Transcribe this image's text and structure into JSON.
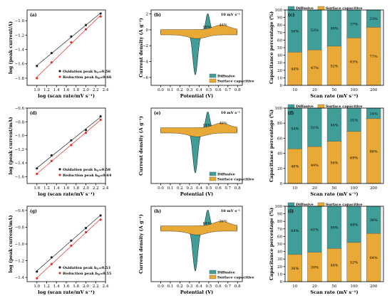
{
  "colors": {
    "diffusive": "#3f9e97",
    "surface": "#e9a937",
    "ox": "#222222",
    "red": "#e0302b"
  },
  "chart_data": [
    {
      "type": "scatter",
      "panel_label": "(a)",
      "xlabel": "log (scan rate/mV s⁻¹)",
      "ylabel": "log (peak current/A)",
      "xlim": [
        0.8,
        2.4
      ],
      "ylim": [
        -1.9,
        -0.85
      ],
      "xticks": [
        1.0,
        1.2,
        1.4,
        1.6,
        1.8,
        2.0,
        2.2,
        2.4
      ],
      "yticks": [
        -1.8,
        -1.6,
        -1.4,
        -1.2,
        -1.0
      ],
      "x": [
        1.0,
        1.3,
        1.7,
        2.0,
        2.3
      ],
      "series": [
        {
          "name": "Oxidation peak b",
          "b_label": "=0.56",
          "values": [
            -1.63,
            -1.45,
            -1.22,
            -1.06,
            -0.9
          ]
        },
        {
          "name": "Reduction peak b",
          "b_label": "=0.66",
          "values": [
            -1.8,
            -1.58,
            -1.3,
            -1.12,
            -0.94
          ]
        }
      ]
    },
    {
      "type": "line",
      "panel_label": "(b)",
      "scan_label": "10 mV s⁻¹",
      "xlabel": "Potential (V)",
      "ylabel": "Current density (A g⁻¹)",
      "xlim": [
        -0.1,
        0.85
      ],
      "ylim": [
        -7,
        2.5
      ],
      "xticks": [
        0.0,
        0.1,
        0.2,
        0.3,
        0.4,
        0.5,
        0.6,
        0.7,
        0.8
      ],
      "yticks": [
        -6,
        -4,
        -2,
        0,
        2
      ],
      "legend": [
        "Diffusive",
        "Surface capacitive"
      ],
      "annotations": [
        "56%",
        "44%"
      ]
    },
    {
      "type": "bar",
      "panel_label": "(c)",
      "xlabel": "Scan rate (mV s⁻¹)",
      "ylabel": "Capacitance percentage (%)",
      "categories": [
        "10",
        "20",
        "50",
        "100",
        "200"
      ],
      "ylim": [
        0,
        100
      ],
      "yticks": [
        0,
        10,
        20,
        30,
        40,
        50,
        60,
        70,
        80,
        90,
        100
      ],
      "legend": [
        "Diffusive",
        "Surface capacitive"
      ],
      "series": [
        {
          "name": "Surface capacitive",
          "values": [
            44,
            47,
            52,
            63,
            77
          ],
          "labels": [
            "44%",
            "47%",
            "52%",
            "63%",
            "77%"
          ]
        },
        {
          "name": "Diffusive",
          "values": [
            56,
            53,
            48,
            37,
            23
          ],
          "labels": [
            "56%",
            "53%",
            "48%",
            "37%",
            "23%"
          ]
        }
      ]
    },
    {
      "type": "scatter",
      "panel_label": "(d)",
      "xlabel": "log (scan rate/mV s⁻¹)",
      "ylabel": "log (peak current/mA)",
      "xlim": [
        0.8,
        2.4
      ],
      "ylim": [
        -1.7,
        -0.6
      ],
      "xticks": [
        1.0,
        1.2,
        1.4,
        1.6,
        1.8,
        2.0,
        2.2,
        2.4
      ],
      "yticks": [
        -1.6,
        -1.4,
        -1.2,
        -1.0,
        -0.8,
        -0.6
      ],
      "x": [
        1.0,
        1.3,
        1.7,
        2.0,
        2.3
      ],
      "series": [
        {
          "name": "Oxidation peak b",
          "b_label": "=0.58",
          "values": [
            -1.48,
            -1.29,
            -1.07,
            -0.92,
            -0.72
          ]
        },
        {
          "name": "Reduction peak b",
          "b_label": "=0.64",
          "values": [
            -1.56,
            -1.37,
            -1.14,
            -0.96,
            -0.77
          ]
        }
      ]
    },
    {
      "type": "line",
      "panel_label": "(e)",
      "scan_label": "10 mV s⁻¹",
      "xlabel": "Potential (V)",
      "ylabel": "Current density (A g⁻¹)",
      "xlim": [
        -0.1,
        0.85
      ],
      "ylim": [
        -14,
        8
      ],
      "xticks": [
        0.0,
        0.1,
        0.2,
        0.3,
        0.4,
        0.5,
        0.6,
        0.7,
        0.8
      ],
      "yticks": [],
      "legend": [
        "Diffusive",
        "Surface capacitive"
      ],
      "annotations": [
        "54%",
        "46%"
      ]
    },
    {
      "type": "bar",
      "panel_label": "(f)",
      "xlabel": "Scan rate (mV s⁻¹)",
      "ylabel": "Capacitance percentage (%)",
      "categories": [
        "10",
        "20",
        "50",
        "100",
        "200"
      ],
      "ylim": [
        0,
        100
      ],
      "yticks": [
        0,
        20,
        40,
        60,
        80,
        100
      ],
      "legend": [
        "Diffusive",
        "Surface capacitive"
      ],
      "series": [
        {
          "name": "Surface capacitive",
          "values": [
            46,
            49,
            56,
            69,
            86
          ],
          "labels": [
            "46%",
            "49%",
            "56%",
            "69%",
            "86%"
          ]
        },
        {
          "name": "Diffusive",
          "values": [
            54,
            51,
            44,
            31,
            14
          ],
          "labels": [
            "54%",
            "51%",
            "44%",
            "31%",
            "14%"
          ]
        }
      ]
    },
    {
      "type": "scatter",
      "panel_label": "(g)",
      "xlabel": "log (scan rate/mV s⁻¹)",
      "ylabel": "log (peak current/mA)",
      "xlim": [
        0.8,
        2.4
      ],
      "ylim": [
        -1.45,
        -0.55
      ],
      "xticks": [
        1.0,
        1.2,
        1.4,
        1.6,
        1.8,
        2.0,
        2.2,
        2.4
      ],
      "yticks": [
        -1.4,
        -1.2,
        -1.0,
        -0.8,
        -0.6
      ],
      "x": [
        1.0,
        1.3,
        1.7,
        2.0,
        2.3
      ],
      "series": [
        {
          "name": "Oxidation peak b",
          "b_label": "=0.53",
          "values": [
            -1.33,
            -1.16,
            -0.96,
            -0.81,
            -0.66
          ]
        },
        {
          "name": "Reduction peak b",
          "b_label": "=0.55",
          "values": [
            -1.41,
            -1.24,
            -1.02,
            -0.86,
            -0.71
          ]
        }
      ]
    },
    {
      "type": "line",
      "panel_label": "(h)",
      "scan_label": "10 mV s⁻¹",
      "xlabel": "Potential (V)",
      "ylabel": "Current density (A g⁻¹)",
      "xlim": [
        -0.1,
        0.85
      ],
      "ylim": [
        -14,
        9
      ],
      "xticks": [
        0.0,
        0.1,
        0.2,
        0.3,
        0.4,
        0.5,
        0.6,
        0.7,
        0.8
      ],
      "yticks": [],
      "legend": [
        "Diffusive",
        "Surface capacitive"
      ],
      "annotations": [
        "64%",
        "36%"
      ]
    },
    {
      "type": "bar",
      "panel_label": "(i)",
      "xlabel": "Scan rate (mV s⁻¹)",
      "ylabel": "Capacitance percentage (%)",
      "categories": [
        "10",
        "20",
        "50",
        "100",
        "200"
      ],
      "ylim": [
        0,
        100
      ],
      "yticks": [
        0,
        10,
        20,
        30,
        40,
        50,
        60,
        70,
        80,
        90,
        100
      ],
      "legend": [
        "Diffusive",
        "Surface capacitive"
      ],
      "series": [
        {
          "name": "Surface capacitive",
          "values": [
            36,
            39,
            44,
            52,
            64
          ],
          "labels": [
            "36%",
            "39%",
            "44%",
            "52%",
            "64%"
          ]
        },
        {
          "name": "Diffusive",
          "values": [
            64,
            61,
            56,
            48,
            36
          ],
          "labels": [
            "64%",
            "61%",
            "56%",
            "48%",
            "36%"
          ]
        }
      ]
    }
  ]
}
